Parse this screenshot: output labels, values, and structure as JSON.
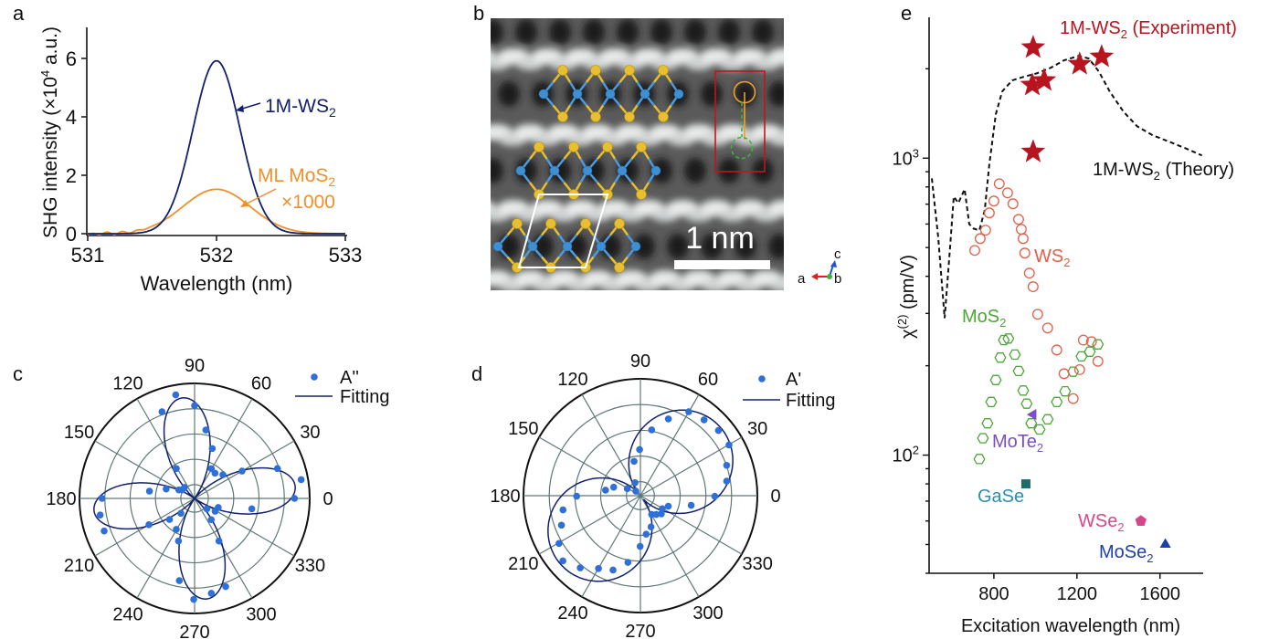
{
  "panel_labels": {
    "a": "a",
    "b": "b",
    "c": "c",
    "d": "d",
    "e": "e"
  },
  "chart_data": [
    {
      "id": "a",
      "type": "line",
      "title": "",
      "xlabel": "Wavelength (nm)",
      "ylabel_main": "SHG intensity (",
      "ylabel_times": "×10",
      "ylabel_exp": "4",
      "ylabel_unit": " a.u.)",
      "xlim": [
        531,
        533
      ],
      "ylim": [
        0,
        7
      ],
      "xticks": [
        531,
        532,
        533
      ],
      "yticks": [
        0,
        2,
        4,
        6
      ],
      "grid": false,
      "series": [
        {
          "name": "1M-WS2",
          "label_main": "1M-WS",
          "label_sub": "2",
          "color": "#13206e",
          "center": 532.0,
          "peak": 5.92,
          "fwhm": 0.43
        },
        {
          "name": "ML MoS2 ×1000",
          "label_main": "ML MoS",
          "label_sub": "2",
          "label_line2": "×1000",
          "color": "#f0902a",
          "center": 532.0,
          "peak": 1.52,
          "fwhm": 0.62
        }
      ]
    },
    {
      "id": "c",
      "type": "scatter",
      "subtype": "polar",
      "angle_ticks": [
        0,
        30,
        60,
        90,
        120,
        150,
        180,
        210,
        240,
        270,
        300,
        330
      ],
      "legend": {
        "points": "A''",
        "line": "Fitting",
        "position": "top-right"
      },
      "point_color": "#2f6fd8",
      "fit_color": "#13206e",
      "rlim": [
        0,
        1
      ],
      "fit": {
        "model": "four-lobe",
        "amplitude": 0.88,
        "phase_deg": 7
      },
      "points": [
        [
          100.3,
          0.915
        ],
        [
          90,
          0.807
        ],
        [
          110.6,
          0.805
        ],
        [
          80.7,
          0.603
        ],
        [
          70.5,
          0.46
        ],
        [
          121.5,
          0.304
        ],
        [
          60.7,
          0.297
        ],
        [
          51.1,
          0.282
        ],
        [
          40,
          0.321
        ],
        [
          30,
          0.476
        ],
        [
          19.8,
          0.765
        ],
        [
          10,
          0.94
        ],
        [
          0,
          0.868
        ],
        [
          349.7,
          0.505
        ],
        [
          339,
          0.22
        ],
        [
          328,
          0.21
        ],
        [
          319.6,
          0.14
        ],
        [
          308,
          0.235
        ],
        [
          299.7,
          0.427
        ],
        [
          289.4,
          0.813
        ],
        [
          280,
          0.838
        ],
        [
          269.5,
          0.878
        ],
        [
          259.5,
          0.727
        ],
        [
          249.3,
          0.396
        ],
        [
          239.5,
          0.313
        ],
        [
          227.4,
          0.176
        ],
        [
          220,
          0.284
        ],
        [
          210,
          0.458
        ],
        [
          199.8,
          0.835
        ],
        [
          190,
          0.833
        ],
        [
          180,
          0.804
        ],
        [
          170.8,
          0.397
        ],
        [
          161.6,
          0.26
        ],
        [
          151.7,
          0.156
        ],
        [
          145,
          0.13
        ],
        [
          132.5,
          0.13
        ]
      ]
    },
    {
      "id": "d",
      "type": "scatter",
      "subtype": "polar",
      "angle_ticks": [
        0,
        30,
        60,
        90,
        120,
        150,
        180,
        210,
        240,
        270,
        300,
        330
      ],
      "legend": {
        "points": "A'",
        "line": "Fitting",
        "position": "top-right"
      },
      "point_color": "#2f6fd8",
      "fit_color": "#13206e",
      "rlim": [
        0,
        1
      ],
      "fit": {
        "model": "two-lobe",
        "amplitude": 0.86,
        "phase_deg": 40
      },
      "points": [
        [
          60.1,
          0.829
        ],
        [
          70,
          0.699
        ],
        [
          50,
          0.847
        ],
        [
          80.3,
          0.571
        ],
        [
          39.9,
          0.87
        ],
        [
          29.8,
          0.873
        ],
        [
          91,
          0.395
        ],
        [
          19.4,
          0.782
        ],
        [
          100.5,
          0.299
        ],
        [
          9.6,
          0.748
        ],
        [
          359.5,
          0.636
        ],
        [
          112.7,
          0.12
        ],
        [
          162.4,
          0.24
        ],
        [
          171,
          0.302
        ],
        [
          151.9,
          0.127
        ],
        [
          135,
          0.055
        ],
        [
          180.5,
          0.545
        ],
        [
          190.4,
          0.673
        ],
        [
          200.5,
          0.721
        ],
        [
          210.4,
          0.807
        ],
        [
          220.1,
          0.867
        ],
        [
          230.2,
          0.804
        ],
        [
          240.1,
          0.719
        ],
        [
          249.8,
          0.678
        ],
        [
          259.4,
          0.581
        ],
        [
          269.7,
          0.434
        ],
        [
          278.5,
          0.333
        ],
        [
          288.8,
          0.282
        ],
        [
          300.8,
          0.187
        ],
        [
          310,
          0.21
        ],
        [
          319,
          0.237
        ],
        [
          329.2,
          0.218
        ],
        [
          339.2,
          0.255
        ],
        [
          349.2,
          0.442
        ]
      ]
    },
    {
      "id": "e",
      "type": "scatter",
      "xlabel": "Excitation wavelength (nm)",
      "ylabel_main": "χ",
      "ylabel_sup": "(2)",
      "ylabel_unit": " (pm/V)",
      "xlim": [
        488,
        1808
      ],
      "ylim": [
        40,
        2980
      ],
      "yscale": "log",
      "xticks": [
        800,
        1200,
        1600
      ],
      "yticks": [
        {
          "value": 100,
          "base": "10",
          "exp": "2"
        },
        {
          "value": 1000,
          "base": "10",
          "exp": "3"
        }
      ],
      "grid": false,
      "theory": {
        "name": "1M-WS2 (Theory)",
        "color": "#111111",
        "points": [
          [
            501,
            855
          ],
          [
            532,
            540
          ],
          [
            563,
            289
          ],
          [
            589,
            503
          ],
          [
            607,
            742
          ],
          [
            629,
            706
          ],
          [
            659,
            786
          ],
          [
            681,
            600
          ],
          [
            703,
            579
          ],
          [
            730,
            571
          ],
          [
            756,
            668
          ],
          [
            778,
            952
          ],
          [
            809,
            1405
          ],
          [
            840,
            1677
          ],
          [
            888,
            1827
          ],
          [
            941,
            1877
          ],
          [
            1007,
            1931
          ],
          [
            1073,
            2015
          ],
          [
            1138,
            2135
          ],
          [
            1209,
            2210
          ],
          [
            1257,
            2165
          ],
          [
            1305,
            1960
          ],
          [
            1358,
            1677
          ],
          [
            1424,
            1434
          ],
          [
            1490,
            1281
          ],
          [
            1565,
            1194
          ],
          [
            1644,
            1136
          ],
          [
            1732,
            1073
          ],
          [
            1802,
            1021
          ]
        ]
      },
      "series": [
        {
          "name": "1M-WS2 (Experiment)",
          "marker": "star",
          "color": "#b8141f",
          "points": [
            [
              989,
              2358
            ],
            [
              985,
              1763
            ],
            [
              1042,
              1827
            ],
            [
              1213,
              2073
            ],
            [
              1319,
              2195
            ],
            [
              989,
              1050
            ]
          ]
        },
        {
          "name": "WS2",
          "marker": "circle-open",
          "color": "#e0604a",
          "points": [
            [
              708,
              489
            ],
            [
              734,
              536
            ],
            [
              760,
              572
            ],
            [
              778,
              654
            ],
            [
              800,
              717
            ],
            [
              826,
              820
            ],
            [
              866,
              764
            ],
            [
              892,
              702
            ],
            [
              919,
              622
            ],
            [
              932,
              576
            ],
            [
              941,
              536
            ],
            [
              949,
              479
            ],
            [
              971,
              410
            ],
            [
              989,
              369
            ],
            [
              1011,
              298
            ],
            [
              1059,
              268
            ],
            [
              1103,
              226
            ],
            [
              1138,
              188
            ],
            [
              1182,
              155
            ],
            [
              1213,
              194
            ],
            [
              1231,
              244
            ],
            [
              1270,
              241
            ],
            [
              1301,
              207
            ]
          ]
        },
        {
          "name": "MoS2",
          "marker": "hexagon-open",
          "color": "#4ea53a",
          "points": [
            [
              730,
              97
            ],
            [
              747,
              114
            ],
            [
              769,
              128
            ],
            [
              787,
              151
            ],
            [
              809,
              179
            ],
            [
              831,
              213
            ],
            [
              848,
              244
            ],
            [
              870,
              247
            ],
            [
              901,
              218
            ],
            [
              919,
              192
            ],
            [
              941,
              165
            ],
            [
              958,
              149
            ],
            [
              980,
              128
            ],
            [
              1020,
              122
            ],
            [
              1059,
              132
            ],
            [
              1103,
              151
            ],
            [
              1143,
              164
            ],
            [
              1182,
              191
            ],
            [
              1222,
              215
            ],
            [
              1262,
              223
            ],
            [
              1301,
              236
            ]
          ]
        },
        {
          "name": "MoTe2",
          "marker": "triangle-left",
          "color": "#7a4fc2",
          "points": [
            [
              989,
              137
            ]
          ]
        },
        {
          "name": "GaSe",
          "marker": "square",
          "color": "#1e6d6a",
          "points": [
            [
              954,
              80
            ]
          ]
        },
        {
          "name": "WSe2",
          "marker": "pentagon",
          "color": "#d4488a",
          "points": [
            [
              1508,
              60
            ]
          ]
        },
        {
          "name": "MoSe2",
          "marker": "triangle-up",
          "color": "#1f3fa8",
          "points": [
            [
              1626,
              50
            ]
          ]
        }
      ],
      "annotations": [
        {
          "key": "exp",
          "main": "1M-WS",
          "sub": "2",
          "rest": " (Experiment)",
          "color": "#b8141f"
        },
        {
          "key": "theory",
          "main": "1M-WS",
          "sub": "2",
          "rest": " (Theory)",
          "color": "#111111"
        },
        {
          "key": "ws2",
          "main": "WS",
          "sub": "2",
          "rest": "",
          "color": "#e0604a"
        },
        {
          "key": "mos2",
          "main": "MoS",
          "sub": "2",
          "rest": "",
          "color": "#4ea53a"
        },
        {
          "key": "mote2",
          "main": "MoTe",
          "sub": "2",
          "rest": "",
          "color": "#7a4fc2"
        },
        {
          "key": "gase",
          "main": "GaSe",
          "sub": "",
          "rest": "",
          "color": "#2a8fb0"
        },
        {
          "key": "wse2",
          "main": "WSe",
          "sub": "2",
          "rest": "",
          "color": "#d4488a"
        },
        {
          "key": "mose2",
          "main": "MoSe",
          "sub": "2",
          "rest": "",
          "color": "#1f3fa8"
        }
      ]
    }
  ],
  "stem_image": {
    "scale_bar_label": "1 nm",
    "axes": {
      "a": "a",
      "b": "b",
      "c": "c"
    },
    "colors": {
      "W": "#3f8fd4",
      "S": "#e8bf30",
      "bond_W": "#4a9be0",
      "bond_S": "#e8bf30",
      "box": "#c0161e",
      "circle_solid": "#f0a02a",
      "circle_dashed": "#3cb43c",
      "axis_a": "#e0201a",
      "axis_c": "#2050e0",
      "axis_b": "#3cb43c"
    }
  }
}
